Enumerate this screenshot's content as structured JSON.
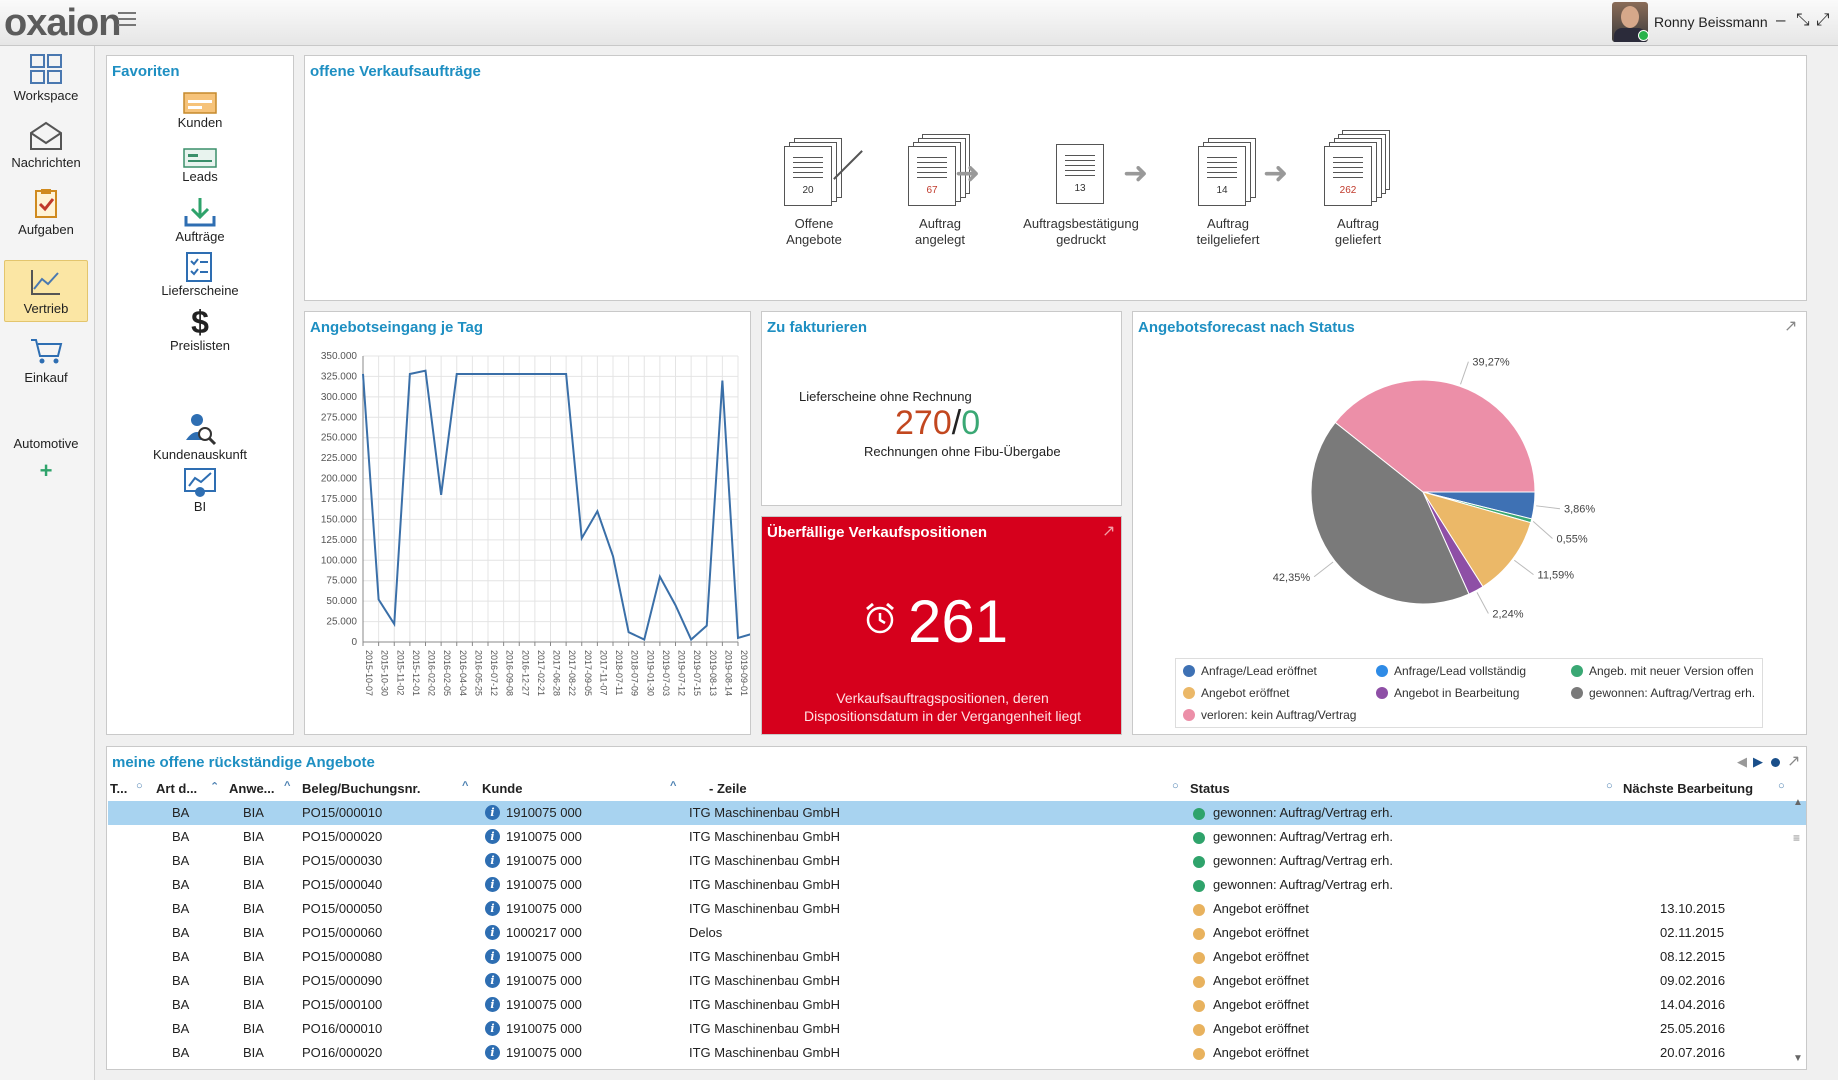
{
  "header": {
    "logo": "oxaion",
    "user_name": "Ronny Beissmann",
    "ctrl_minimize": "–",
    "ctrl_restore": "⤡",
    "ctrl_maximize": "⤢"
  },
  "sidebar": {
    "items": [
      {
        "label": "Workspace"
      },
      {
        "label": "Nachrichten"
      },
      {
        "label": "Aufgaben"
      },
      {
        "label": "Vertrieb"
      },
      {
        "label": "Einkauf"
      },
      {
        "label": "Automotive"
      }
    ],
    "add_symbol": "+"
  },
  "favorites": {
    "title": "Favoriten",
    "items": [
      {
        "label": "Kunden"
      },
      {
        "label": "Leads"
      },
      {
        "label": "Aufträge"
      },
      {
        "label": "Lieferscheine"
      },
      {
        "label": "Preislisten"
      },
      {
        "label": "Kundenauskunft"
      },
      {
        "label": "BI"
      }
    ]
  },
  "pipeline": {
    "title": "offene Verkaufsaufträge",
    "steps": [
      {
        "count": "20",
        "line1": "Offene",
        "line2": "Angebote"
      },
      {
        "count": "67",
        "line1": "Auftrag",
        "line2": "angelegt"
      },
      {
        "count": "13",
        "line1": "Auftragsbestätigung",
        "line2": "gedruckt"
      },
      {
        "count": "14",
        "line1": "Auftrag",
        "line2": "teilgeliefert"
      },
      {
        "count": "262",
        "line1": "Auftrag",
        "line2": "geliefert"
      }
    ]
  },
  "line_chart_panel": {
    "title": "Angebotseingang je Tag"
  },
  "chart_data": {
    "type": "line",
    "title": "Angebotseingang je Tag",
    "y_ticks": [
      "0",
      "25.000",
      "50.000",
      "75.000",
      "100.000",
      "125.000",
      "150.000",
      "175.000",
      "200.000",
      "225.000",
      "250.000",
      "275.000",
      "300.000",
      "325.000",
      "350.000"
    ],
    "ylim": [
      0,
      350000
    ],
    "x_ticks": [
      "2015-10-07",
      "2015-10-30",
      "2015-11-02",
      "2015-12-01",
      "2016-02-02",
      "2016-02-05",
      "2016-04-04",
      "2016-05-25",
      "2016-07-12",
      "2016-09-08",
      "2016-12-27",
      "2017-02-21",
      "2017-06-28",
      "2017-08-22",
      "2017-09-05",
      "2017-11-07",
      "2018-07-11",
      "2018-07-09",
      "2019-01-30",
      "2019-07-03",
      "2019-07-12",
      "2019-07-15",
      "2019-08-13",
      "2019-08-14",
      "2019-09-01"
    ],
    "series": [
      {
        "values": [
          328000,
          52000,
          22000,
          328000,
          332000,
          180000,
          328000,
          328000,
          328000,
          328000,
          328000,
          328000,
          328000,
          328000,
          127000,
          160000,
          105000,
          12000,
          3000,
          80000,
          45000,
          3000,
          20000,
          320000,
          5000,
          10000
        ],
        "x_index": [
          0,
          1,
          2,
          3,
          4,
          5,
          6,
          7,
          8,
          9,
          10,
          11,
          12,
          13,
          14,
          15,
          16,
          17,
          18,
          19,
          20,
          21,
          22,
          23,
          24,
          24.9
        ]
      }
    ],
    "grid": true
  },
  "invoice": {
    "title": "Zu fakturieren",
    "label_top": "Lieferscheine ohne Rechnung",
    "value_a": "270",
    "sep": "/",
    "value_b": "0",
    "label_bottom": "Rechnungen ohne Fibu-Übergabe"
  },
  "overdue": {
    "title": "Überfällige Verkaufspositionen",
    "count": "261",
    "desc1": "Verkaufsauftragspositionen, deren",
    "desc2": "Dispositionsdatum in der Vergangenheit liegt"
  },
  "forecast": {
    "title": "Angebotsforecast nach Status",
    "pie": {
      "type": "pie",
      "slices": [
        {
          "label": "Anfrage/Lead eröffnet",
          "value": 3.86,
          "text": "3,86%",
          "color": "#3e71b4"
        },
        {
          "label": "Angeb. mit neuer Version offen",
          "value": 0.55,
          "text": "0,55%",
          "color": "#3aa874"
        },
        {
          "label": "Angebot eröffnet",
          "value": 11.59,
          "text": "11,59%",
          "color": "#ebb868"
        },
        {
          "label": "Angebot in Bearbeitung",
          "value": 2.24,
          "text": "2,24%",
          "color": "#8e4fa6"
        },
        {
          "label": "gewonnen: Auftrag/Vertrag erh.",
          "value": 42.35,
          "text": "42,35%",
          "color": "#7a7a7a"
        },
        {
          "label": "verloren: kein Auftrag/Vertrag",
          "value": 39.27,
          "text": "39,27%",
          "color": "#ec8fa8"
        }
      ]
    },
    "legend": [
      {
        "label": "Anfrage/Lead eröffnet",
        "color": "#3e71b4"
      },
      {
        "label": "Anfrage/Lead vollständig",
        "color": "#2e8be6"
      },
      {
        "label": "Angeb. mit neuer Version offen",
        "color": "#3aa874"
      },
      {
        "label": "Angebot eröffnet",
        "color": "#ebb868"
      },
      {
        "label": "Angebot in Bearbeitung",
        "color": "#8e4fa6"
      },
      {
        "label": "gewonnen: Auftrag/Vertrag erh.",
        "color": "#7a7a7a"
      },
      {
        "label": "verloren: kein Auftrag/Vertrag",
        "color": "#ec8fa8"
      }
    ]
  },
  "table": {
    "title": "meine offene rückständige Angebote",
    "columns": [
      "T...",
      "Art d...",
      "Anwe...",
      "Beleg/Buchungsnr.",
      "Kunde",
      "- Zeile",
      "Status",
      "Nächste Bearbeitung"
    ],
    "rows": [
      {
        "art": "BA",
        "anw": "BIA",
        "beleg": "PO15/000010",
        "kunde": "1910075 000",
        "zeile": "ITG Maschinenbau GmbH",
        "status": "gewonnen: Auftrag/Vertrag erh.",
        "status_color": "#2fa36b",
        "next": ""
      },
      {
        "art": "BA",
        "anw": "BIA",
        "beleg": "PO15/000020",
        "kunde": "1910075 000",
        "zeile": "ITG Maschinenbau GmbH",
        "status": "gewonnen: Auftrag/Vertrag erh.",
        "status_color": "#2fa36b",
        "next": ""
      },
      {
        "art": "BA",
        "anw": "BIA",
        "beleg": "PO15/000030",
        "kunde": "1910075 000",
        "zeile": "ITG Maschinenbau GmbH",
        "status": "gewonnen: Auftrag/Vertrag erh.",
        "status_color": "#2fa36b",
        "next": ""
      },
      {
        "art": "BA",
        "anw": "BIA",
        "beleg": "PO15/000040",
        "kunde": "1910075 000",
        "zeile": "ITG Maschinenbau GmbH",
        "status": "gewonnen: Auftrag/Vertrag erh.",
        "status_color": "#2fa36b",
        "next": ""
      },
      {
        "art": "BA",
        "anw": "BIA",
        "beleg": "PO15/000050",
        "kunde": "1910075 000",
        "zeile": "ITG Maschinenbau GmbH",
        "status": "Angebot eröffnet",
        "status_color": "#e8b25e",
        "next": "13.10.2015"
      },
      {
        "art": "BA",
        "anw": "BIA",
        "beleg": "PO15/000060",
        "kunde": "1000217 000",
        "zeile": "Delos",
        "status": "Angebot eröffnet",
        "status_color": "#e8b25e",
        "next": "02.11.2015"
      },
      {
        "art": "BA",
        "anw": "BIA",
        "beleg": "PO15/000080",
        "kunde": "1910075 000",
        "zeile": "ITG Maschinenbau GmbH",
        "status": "Angebot eröffnet",
        "status_color": "#e8b25e",
        "next": "08.12.2015"
      },
      {
        "art": "BA",
        "anw": "BIA",
        "beleg": "PO15/000090",
        "kunde": "1910075 000",
        "zeile": "ITG Maschinenbau GmbH",
        "status": "Angebot eröffnet",
        "status_color": "#e8b25e",
        "next": "09.02.2016"
      },
      {
        "art": "BA",
        "anw": "BIA",
        "beleg": "PO15/000100",
        "kunde": "1910075 000",
        "zeile": "ITG Maschinenbau GmbH",
        "status": "Angebot eröffnet",
        "status_color": "#e8b25e",
        "next": "14.04.2016"
      },
      {
        "art": "BA",
        "anw": "BIA",
        "beleg": "PO16/000010",
        "kunde": "1910075 000",
        "zeile": "ITG Maschinenbau GmbH",
        "status": "Angebot eröffnet",
        "status_color": "#e8b25e",
        "next": "25.05.2016"
      },
      {
        "art": "BA",
        "anw": "BIA",
        "beleg": "PO16/000020",
        "kunde": "1910075 000",
        "zeile": "ITG Maschinenbau GmbH",
        "status": "Angebot eröffnet",
        "status_color": "#e8b25e",
        "next": "20.07.2016"
      }
    ]
  }
}
